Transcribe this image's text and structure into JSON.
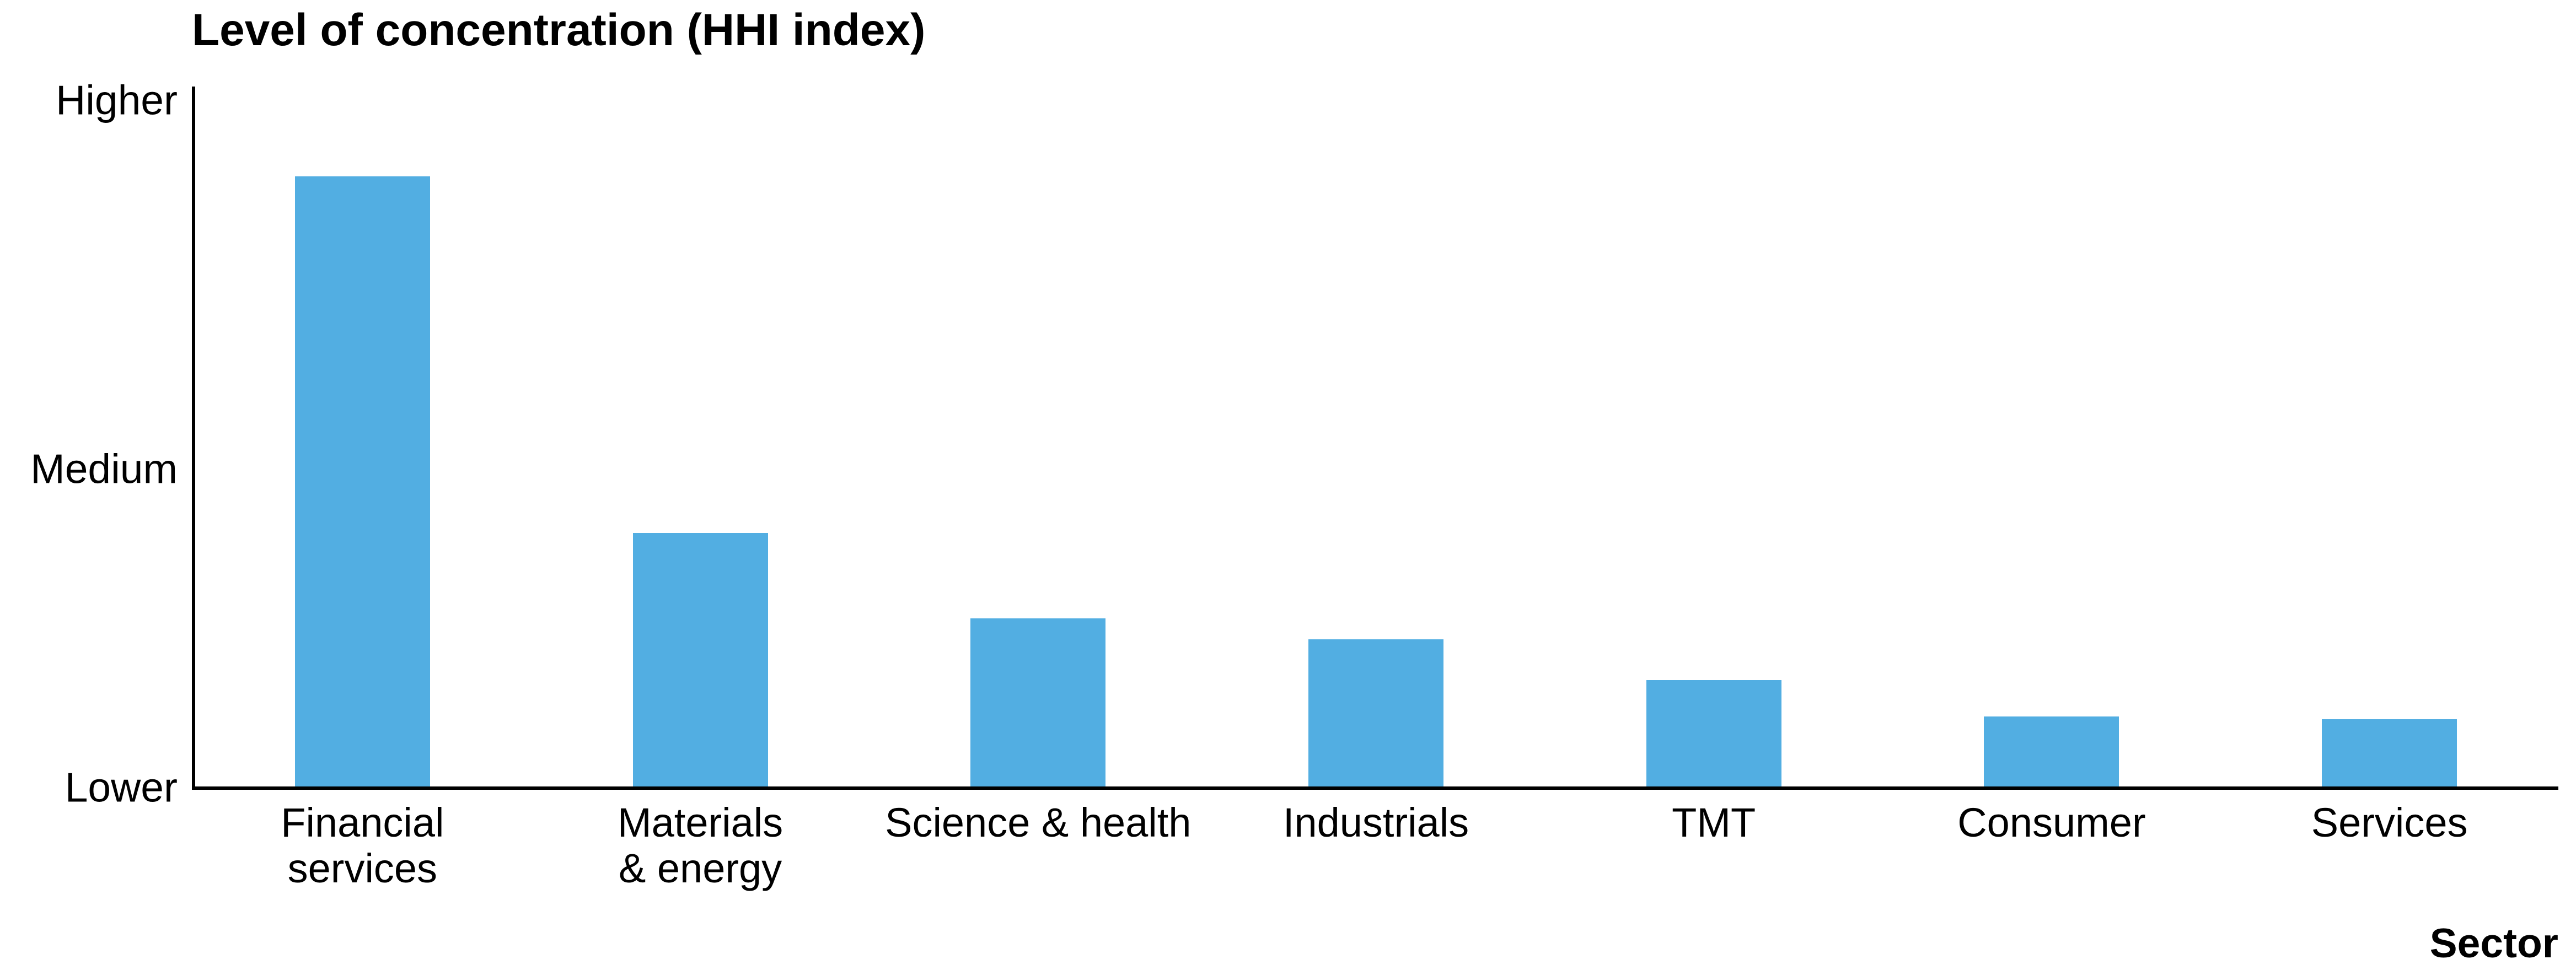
{
  "title": "Level of concentration (HHI index)",
  "x_axis_title": "Sector",
  "y_axis": {
    "ticks": [
      {
        "label": "Higher",
        "pos": 0.982
      },
      {
        "label": "Medium",
        "pos": 0.455
      },
      {
        "label": "Lower",
        "pos": 0.0
      }
    ]
  },
  "colors": {
    "bar": "#52AEE2",
    "axis": "#000000",
    "text": "#000000"
  },
  "chart_data": {
    "type": "bar",
    "title": "Level of concentration (HHI index)",
    "xlabel": "Sector",
    "ylabel": "Level of concentration (HHI index)",
    "categories": [
      "Financial\nservices",
      "Materials\n& energy",
      "Science & health",
      "Industrials",
      "TMT",
      "Consumer",
      "Services"
    ],
    "values": [
      0.89,
      0.37,
      0.245,
      0.215,
      0.155,
      0.102,
      0.098
    ],
    "value_scale": "relative concentration: 0 = Lower tick, 1 = Higher tick (axis is qualitative, no numbers shown)",
    "ytick_labels": [
      "Lower",
      "Medium",
      "Higher"
    ],
    "ytick_positions": [
      0.0,
      0.455,
      1.0
    ],
    "ylim": [
      0,
      1.018
    ],
    "grid": false,
    "legend": false,
    "bar_color": "#52AEE2",
    "bar_width_ratio": 0.4,
    "higher_tick_frac": 0.982
  }
}
